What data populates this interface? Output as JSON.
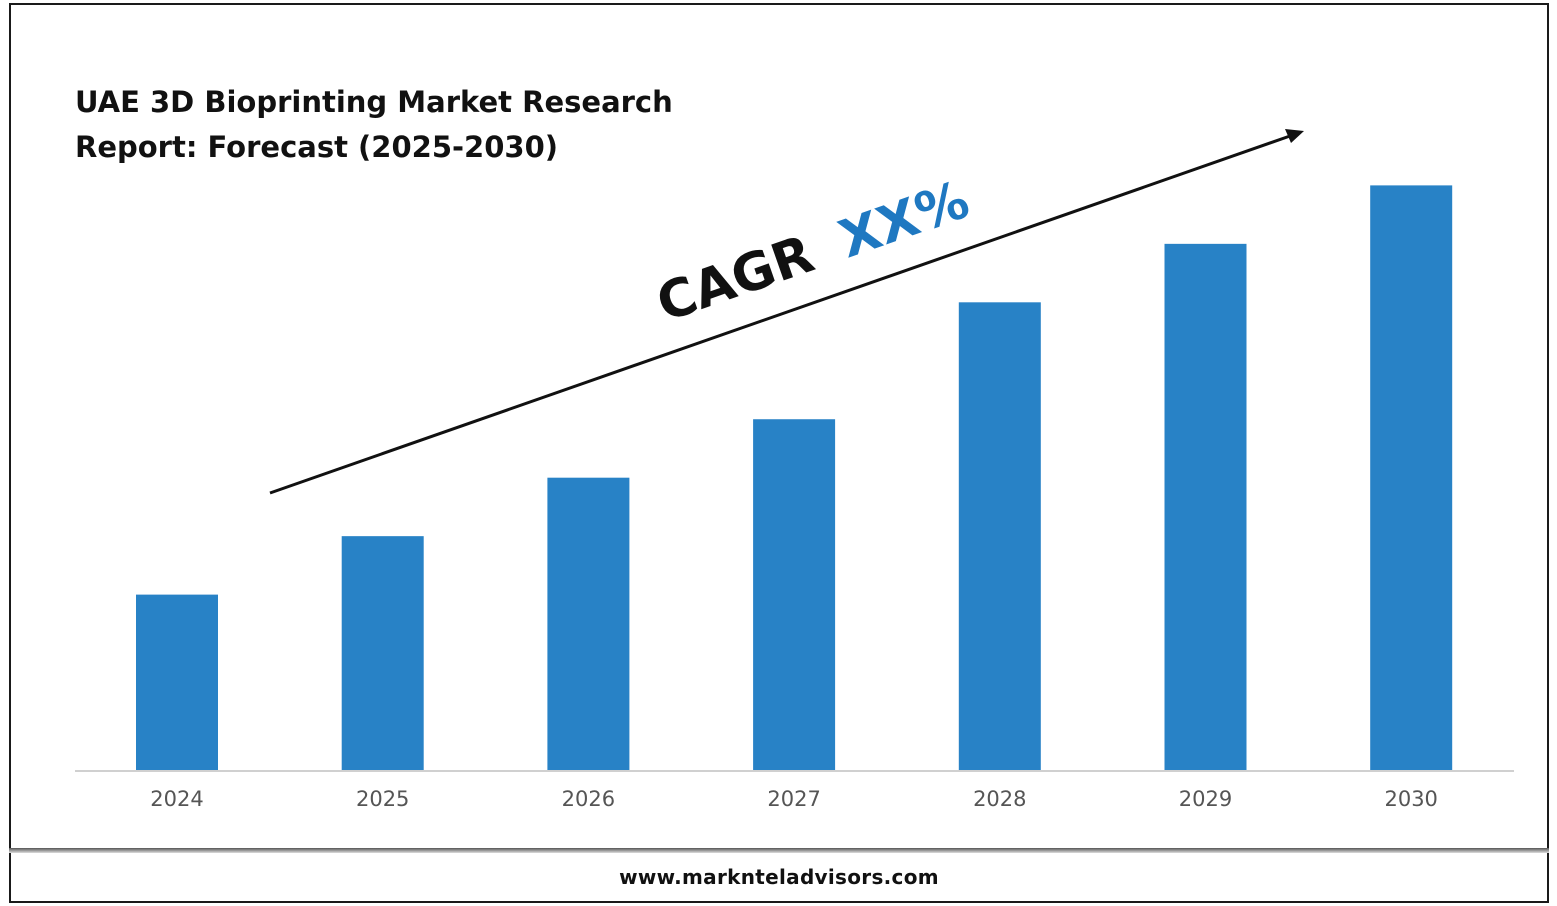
{
  "chart_data": {
    "type": "bar",
    "title": "UAE 3D Bioprinting Market Research Report: Forecast (2025-2030)",
    "categories": [
      "2024",
      "2025",
      "2026",
      "2027",
      "2028",
      "2029",
      "2030"
    ],
    "values": [
      30,
      40,
      50,
      60,
      80,
      90,
      100
    ],
    "ylim": [
      0,
      130
    ],
    "xlabel": "",
    "ylabel": "",
    "grid": false,
    "bar_color": "#2882c6",
    "annotation": {
      "prefix": "CAGR",
      "value": "XX%",
      "prefix_color": "#111111",
      "value_color": "#1f78c1"
    }
  },
  "title_lines": [
    "UAE 3D Bioprinting Market Research",
    "Report: Forecast (2025-2030)"
  ],
  "footer": {
    "url": "www.marknteladvisors.com"
  }
}
